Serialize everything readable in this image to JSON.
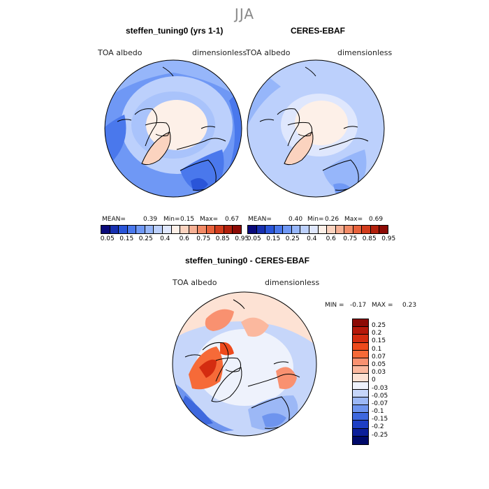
{
  "season": "JJA",
  "panels": {
    "model": {
      "title": "steffen_tuning0 (yrs 1-1)",
      "var_label": "TOA albedo",
      "units_label": "dimensionless",
      "mean_label": "MEAN=",
      "mean": "0.39",
      "min_label": "Min=",
      "min": "0.15",
      "max_label": "Max=",
      "max": "0.67"
    },
    "obs": {
      "title": "CERES-EBAF",
      "var_label": "TOA albedo",
      "units_label": "dimensionless",
      "mean_label": "MEAN=",
      "mean": "0.40",
      "min_label": "Min=",
      "min": "0.26",
      "max_label": "Max=",
      "max": "0.69"
    },
    "diff": {
      "title": "steffen_tuning0 - CERES-EBAF",
      "var_label": "TOA albedo",
      "units_label": "dimensionless",
      "min_label": "MIN =",
      "min": "-0.17",
      "max_label": "MAX =",
      "max": "0.23"
    }
  },
  "colorbar_abs": {
    "ticks": [
      "0.05",
      "0.15",
      "0.25",
      "0.4",
      "0.6",
      "0.75",
      "0.85",
      "0.95"
    ],
    "colors": [
      "#0a0a7a",
      "#1830b0",
      "#2a55d8",
      "#4a78ec",
      "#6f98f5",
      "#96b6fa",
      "#bcd0fc",
      "#dfe7fd",
      "#fdf0e8",
      "#fbd3bf",
      "#f7b195",
      "#f28a66",
      "#e8623c",
      "#d23c1c",
      "#b2200c",
      "#8c0a05"
    ]
  },
  "colorbar_diff": {
    "ticks": [
      "0.25",
      "0.2",
      "0.15",
      "0.1",
      "0.07",
      "0.05",
      "0.03",
      "0",
      "-0.03",
      "-0.05",
      "-0.07",
      "-0.1",
      "-0.15",
      "-0.2",
      "-0.25"
    ],
    "colors": [
      "#8c0a05",
      "#b5180a",
      "#d42c10",
      "#ee4a1c",
      "#f66a38",
      "#f99170",
      "#fbb89e",
      "#fde2d4",
      "#eef2fc",
      "#c6d6fa",
      "#9cb8f6",
      "#6e94ee",
      "#3e68de",
      "#1e3fc4",
      "#0c1f9a",
      "#000a6a"
    ]
  }
}
